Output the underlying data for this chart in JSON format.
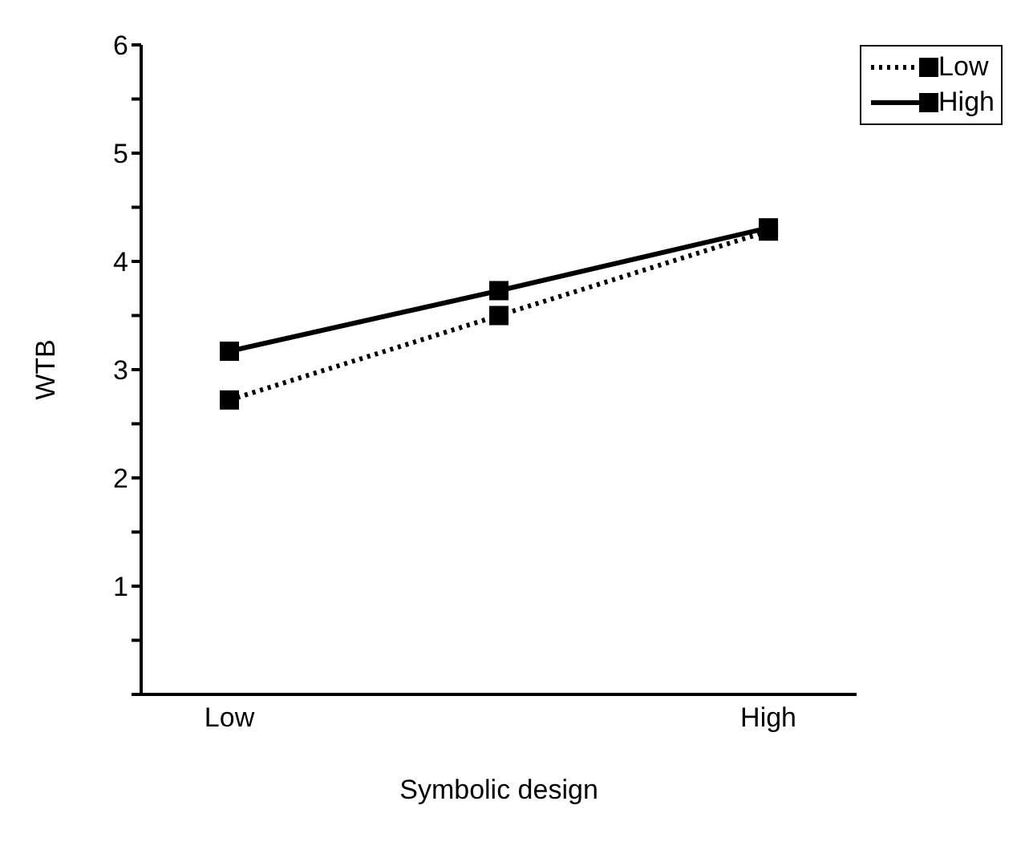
{
  "chart_data": {
    "type": "line",
    "xlabel": "Symbolic design",
    "ylabel": "WTB",
    "categories": [
      "Low",
      null,
      "High"
    ],
    "series": [
      {
        "name": "Low",
        "color": "#000000",
        "line_style": "dotted",
        "values": [
          2.72,
          3.5,
          4.28
        ]
      },
      {
        "name": "High",
        "color": "#000000",
        "line_style": "solid",
        "values": [
          3.17,
          3.73,
          4.31
        ]
      }
    ],
    "ylim": [
      0,
      6
    ],
    "yticks": [
      {
        "value": 0,
        "label": null
      },
      {
        "value": 0.5,
        "label": null
      },
      1,
      {
        "value": 1.5,
        "label": null
      },
      2,
      {
        "value": 2.5,
        "label": null
      },
      3,
      {
        "value": 3.5,
        "label": null
      },
      4,
      {
        "value": 4.5,
        "label": null
      },
      5,
      {
        "value": 5.5,
        "label": null
      },
      6
    ],
    "marker": "square",
    "legend": "top right",
    "grid": false
  }
}
